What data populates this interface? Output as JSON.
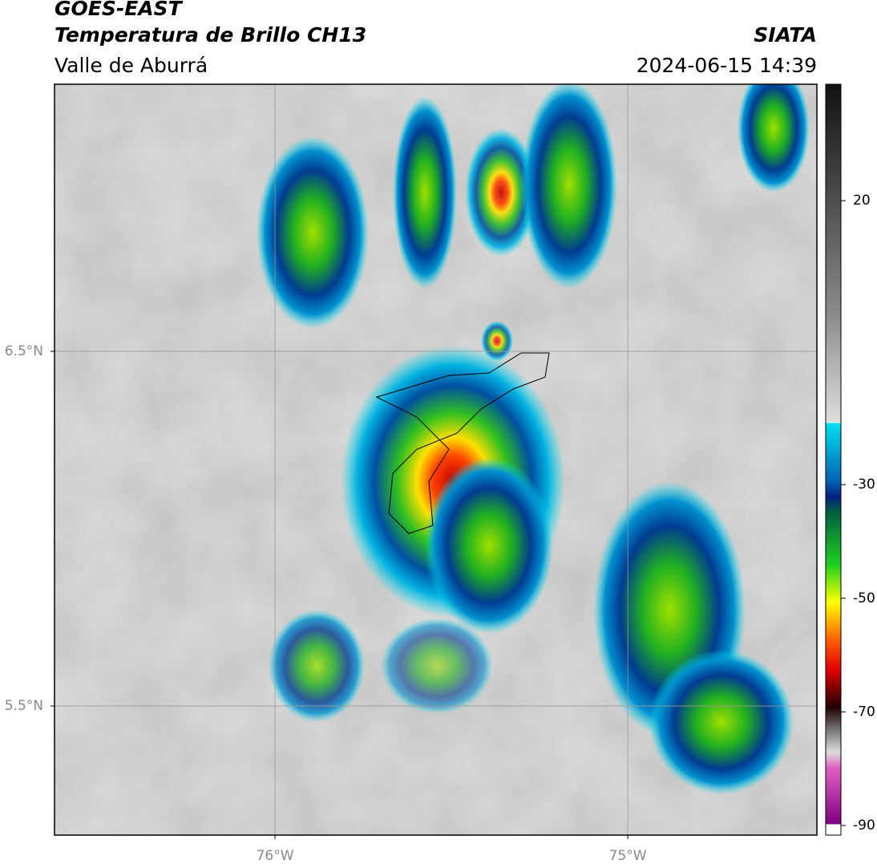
{
  "header": {
    "title": "GOES-EAST",
    "subtitle": "Temperatura de Brillo CH13",
    "region": "Valle de Aburrá",
    "source": "SIATA",
    "datetime": "2024-06-15 14:39"
  },
  "map": {
    "lonlim": [
      -76.625,
      -74.464
    ],
    "latlim": [
      7.253,
      5.136
    ],
    "lonticks": [
      {
        "value": -76,
        "label": "76°W"
      },
      {
        "value": -75,
        "label": "75°W"
      }
    ],
    "latticks": [
      {
        "value": 6.5,
        "label": "6.5°N"
      },
      {
        "value": 5.5,
        "label": "5.5°N"
      }
    ]
  },
  "colorbar": {
    "lim": [
      40.5,
      -91.7
    ],
    "ticks": [
      20,
      -30,
      -50,
      -70,
      -90
    ]
  }
}
